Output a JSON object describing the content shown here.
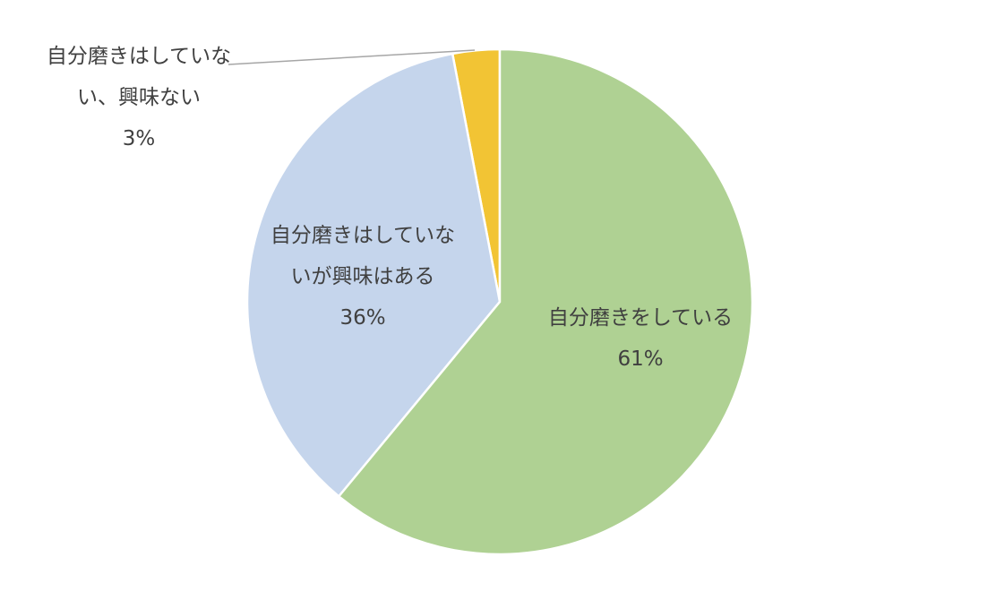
{
  "chart_data": {
    "type": "pie",
    "categories": [
      "自分磨きをしている",
      "自分磨きはしていないが興味はある",
      "自分磨きはしていない、興味ない"
    ],
    "values": [
      61,
      36,
      3
    ],
    "value_labels": [
      "61%",
      "36%",
      "3%"
    ],
    "colors": [
      "#afd193",
      "#c5d5ec",
      "#f2c434"
    ]
  }
}
